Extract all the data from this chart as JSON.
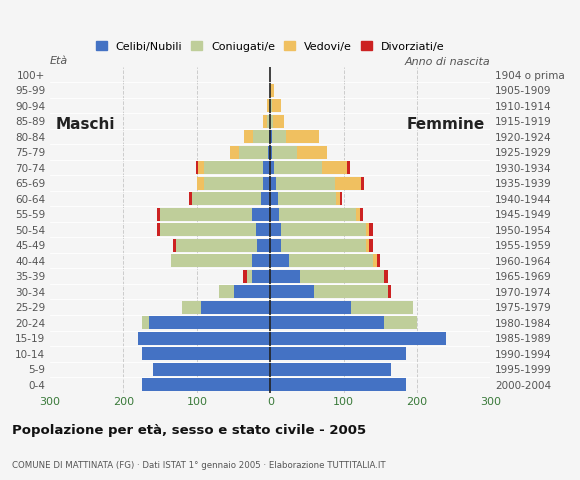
{
  "age_groups": [
    "0-4",
    "5-9",
    "10-14",
    "15-19",
    "20-24",
    "25-29",
    "30-34",
    "35-39",
    "40-44",
    "45-49",
    "50-54",
    "55-59",
    "60-64",
    "65-69",
    "70-74",
    "75-79",
    "80-84",
    "85-89",
    "90-94",
    "95-99",
    "100+"
  ],
  "birth_years": [
    "2000-2004",
    "1995-1999",
    "1990-1994",
    "1985-1989",
    "1980-1984",
    "1975-1979",
    "1970-1974",
    "1965-1969",
    "1960-1964",
    "1955-1959",
    "1950-1954",
    "1945-1949",
    "1940-1944",
    "1935-1939",
    "1930-1934",
    "1925-1929",
    "1920-1924",
    "1915-1919",
    "1910-1914",
    "1905-1909",
    "1904 o prima"
  ],
  "males": {
    "celibe": [
      175,
      160,
      175,
      180,
      165,
      95,
      50,
      25,
      25,
      18,
      20,
      25,
      12,
      10,
      10,
      3,
      2,
      0,
      0,
      0,
      0
    ],
    "coniugato": [
      0,
      0,
      0,
      0,
      10,
      25,
      20,
      7,
      110,
      110,
      130,
      125,
      95,
      80,
      80,
      40,
      22,
      5,
      2,
      0,
      0
    ],
    "vedovo": [
      0,
      0,
      0,
      0,
      0,
      0,
      0,
      0,
      0,
      0,
      0,
      0,
      0,
      10,
      8,
      12,
      12,
      5,
      3,
      0,
      0
    ],
    "divorziato": [
      0,
      0,
      0,
      0,
      0,
      0,
      0,
      5,
      0,
      5,
      5,
      4,
      4,
      0,
      3,
      0,
      0,
      0,
      0,
      0,
      0
    ]
  },
  "females": {
    "nubile": [
      185,
      165,
      185,
      240,
      155,
      110,
      60,
      40,
      25,
      15,
      15,
      12,
      10,
      8,
      5,
      2,
      2,
      0,
      0,
      0,
      0
    ],
    "coniugata": [
      0,
      0,
      0,
      0,
      45,
      85,
      100,
      115,
      115,
      115,
      115,
      105,
      80,
      80,
      65,
      35,
      20,
      4,
      2,
      0,
      0
    ],
    "vedova": [
      0,
      0,
      0,
      0,
      0,
      0,
      0,
      0,
      5,
      5,
      5,
      5,
      5,
      35,
      35,
      40,
      45,
      15,
      12,
      5,
      0
    ],
    "divorziata": [
      0,
      0,
      0,
      0,
      0,
      0,
      5,
      5,
      5,
      5,
      5,
      5,
      3,
      5,
      4,
      0,
      0,
      0,
      0,
      0,
      0
    ]
  },
  "colors": {
    "celibe": "#4472C4",
    "coniugato": "#BFCE9A",
    "vedovo": "#F0C060",
    "divorziato": "#CC2222"
  },
  "xlim": 300,
  "title": "Popolazione per età, sesso e stato civile - 2005",
  "subtitle": "COMUNE DI MATTINATA (FG) · Dati ISTAT 1° gennaio 2005 · Elaborazione TUTTITALIA.IT",
  "legend_labels": [
    "Celibi/Nubili",
    "Coniugati/e",
    "Vedovi/e",
    "Divorziati/e"
  ],
  "label_maschi": "Maschi",
  "label_femmine": "Femmine",
  "label_eta": "Età",
  "label_anno": "Anno di nascita",
  "bg_color": "#f5f5f5",
  "axis_color": "#555555",
  "tick_color": "#3a7a3a",
  "grid_color": "#cccccc",
  "center_line_color": "#222222"
}
